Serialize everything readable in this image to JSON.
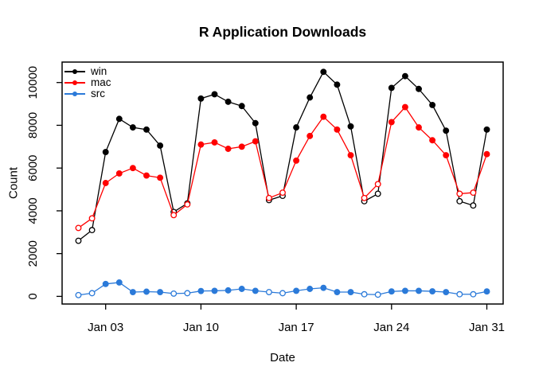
{
  "window": {
    "background": "#ffffff"
  },
  "chart_data": {
    "type": "line",
    "title": "R Application Downloads",
    "xlabel": "Date",
    "ylabel": "Count",
    "grid": false,
    "legend_position": "topleft",
    "x_days": [
      "Jan 01",
      "Jan 02",
      "Jan 03",
      "Jan 04",
      "Jan 05",
      "Jan 06",
      "Jan 07",
      "Jan 08",
      "Jan 09",
      "Jan 10",
      "Jan 11",
      "Jan 12",
      "Jan 13",
      "Jan 14",
      "Jan 15",
      "Jan 16",
      "Jan 17",
      "Jan 18",
      "Jan 19",
      "Jan 20",
      "Jan 21",
      "Jan 22",
      "Jan 23",
      "Jan 24",
      "Jan 25",
      "Jan 26",
      "Jan 27",
      "Jan 28",
      "Jan 29",
      "Jan 30",
      "Jan 31"
    ],
    "x_tick_labels": [
      "Jan 03",
      "Jan 10",
      "Jan 17",
      "Jan 24",
      "Jan 31"
    ],
    "x_tick_day_indices": [
      2,
      9,
      16,
      23,
      30
    ],
    "y_ticks": [
      0,
      2000,
      4000,
      6000,
      8000,
      10000
    ],
    "y_tick_labels": [
      "0",
      "2000",
      "4000",
      "6000",
      "8000",
      "10000"
    ],
    "ylim": [
      0,
      11000
    ],
    "open_marker_indices": [
      0,
      1,
      7,
      8,
      14,
      15,
      21,
      22,
      28,
      29
    ],
    "series": [
      {
        "name": "win",
        "color": "#000000",
        "values": [
          2600,
          3100,
          6750,
          8300,
          7900,
          7800,
          7050,
          3950,
          4350,
          9250,
          9450,
          9100,
          8900,
          8100,
          4500,
          4700,
          7900,
          9300,
          10500,
          9900,
          7950,
          4450,
          4800,
          9750,
          10300,
          9700,
          8950,
          7750,
          4450,
          4250,
          7800
        ]
      },
      {
        "name": "mac",
        "color": "#FF0000",
        "values": [
          3200,
          3650,
          5300,
          5750,
          6000,
          5650,
          5550,
          3800,
          4300,
          7100,
          7200,
          6900,
          7000,
          7250,
          4600,
          4850,
          6350,
          7500,
          8400,
          7800,
          6600,
          4600,
          5250,
          8150,
          8850,
          7900,
          7300,
          6600,
          4800,
          4850,
          6650
        ]
      },
      {
        "name": "src",
        "color": "#2B7AD9",
        "values": [
          60,
          150,
          580,
          650,
          200,
          220,
          200,
          130,
          150,
          250,
          260,
          280,
          350,
          260,
          200,
          150,
          260,
          350,
          400,
          200,
          200,
          100,
          80,
          230,
          260,
          260,
          235,
          200,
          100,
          100,
          230
        ]
      }
    ]
  }
}
